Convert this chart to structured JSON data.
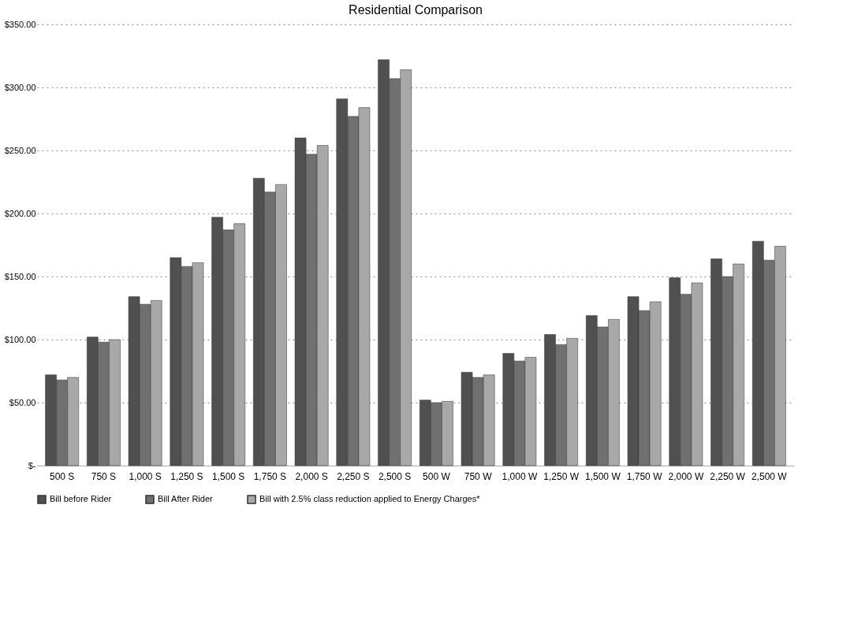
{
  "chart_data": {
    "type": "bar",
    "title": "Residential Comparison",
    "categories": [
      "500\nS",
      "750\nS",
      "1,000\nS",
      "1,250\nS",
      "1,500\nS",
      "1,750\nS",
      "2,000\nS",
      "2,250\nS",
      "2,500\nS",
      "500\nW",
      "750\nW",
      "1,000\nW",
      "1,250\nW",
      "1,500\nW",
      "1,750\nW",
      "2,000\nW",
      "2,250\nW",
      "2,500\nW"
    ],
    "series": [
      {
        "name": "Bill before Rider",
        "color": "#505050",
        "values": [
          72,
          102,
          134,
          165,
          197,
          228,
          260,
          291,
          322,
          52,
          74,
          89,
          104,
          119,
          134,
          149,
          164,
          178
        ]
      },
      {
        "name": "Bill After Rider",
        "color": "#707070",
        "values": [
          68,
          98,
          128,
          158,
          187,
          217,
          247,
          277,
          307,
          50,
          70,
          83,
          96,
          110,
          123,
          136,
          150,
          163
        ]
      },
      {
        "name": "Bill with 2.5% class reduction applied to Energy Charges*",
        "color": "#a8a8a8",
        "values": [
          70,
          100,
          131,
          161,
          192,
          223,
          254,
          284,
          314,
          51,
          72,
          86,
          101,
          116,
          130,
          145,
          160,
          174
        ]
      }
    ],
    "ylim": [
      0,
      350
    ],
    "yticks": [
      {
        "value": 0,
        "label": "$-"
      },
      {
        "value": 50,
        "label": "$50.00"
      },
      {
        "value": 100,
        "label": "$100.00"
      },
      {
        "value": 150,
        "label": "$150.00"
      },
      {
        "value": 200,
        "label": "$200.00"
      },
      {
        "value": 250,
        "label": "$250.00"
      },
      {
        "value": 300,
        "label": "$300.00"
      },
      {
        "value": 350,
        "label": "$350.00"
      }
    ],
    "grid": "y",
    "legend": "bottom"
  }
}
